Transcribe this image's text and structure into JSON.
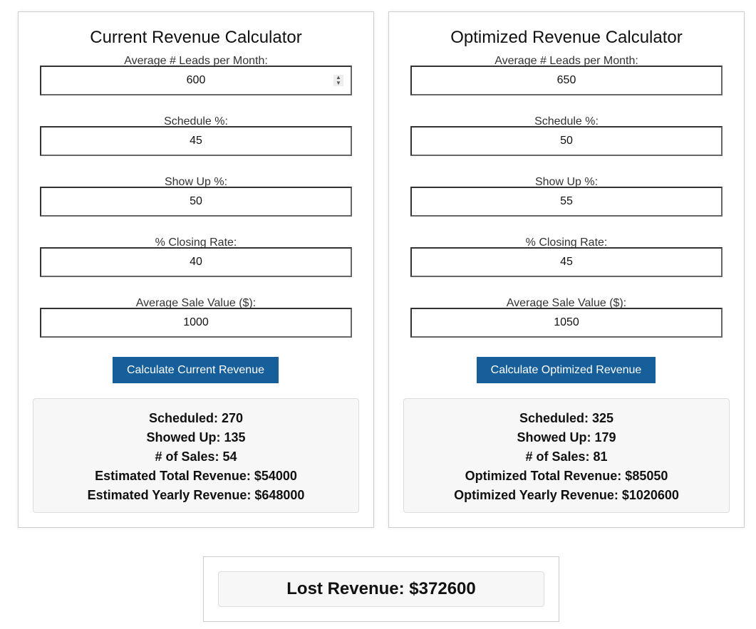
{
  "current": {
    "title": "Current Revenue Calculator",
    "fields": [
      {
        "label": "Average # Leads per Month:",
        "value": "600"
      },
      {
        "label": "Schedule %:",
        "value": "45"
      },
      {
        "label": "Show Up %:",
        "value": "50"
      },
      {
        "label": "% Closing Rate:",
        "value": "40"
      },
      {
        "label": "Average Sale Value ($):",
        "value": "1000"
      }
    ],
    "button": "Calculate Current Revenue",
    "results": [
      "Scheduled: 270",
      "Showed Up: 135",
      "# of Sales: 54",
      "Estimated Total Revenue: $54000",
      "Estimated Yearly Revenue: $648000"
    ]
  },
  "optimized": {
    "title": "Optimized Revenue Calculator",
    "fields": [
      {
        "label": "Average # Leads per Month:",
        "value": "650"
      },
      {
        "label": "Schedule %:",
        "value": "50"
      },
      {
        "label": "Show Up %:",
        "value": "55"
      },
      {
        "label": "% Closing Rate:",
        "value": "45"
      },
      {
        "label": "Average Sale Value ($):",
        "value": "1050"
      }
    ],
    "button": "Calculate Optimized Revenue",
    "results": [
      "Scheduled: 325",
      "Showed Up: 179",
      "# of Sales: 81",
      "Optimized Total Revenue: $85050",
      "Optimized Yearly Revenue: $1020600"
    ]
  },
  "lost_revenue": "Lost Revenue: $372600",
  "colors": {
    "button": "#175f9b",
    "results_bg": "#f7f7f7"
  }
}
